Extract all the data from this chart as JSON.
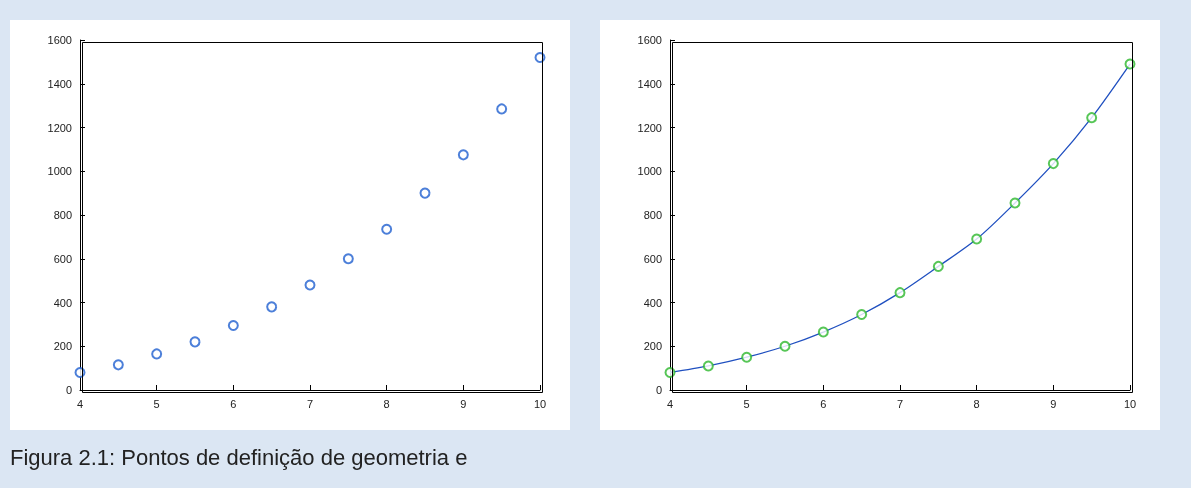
{
  "chart_data": [
    {
      "type": "scatter",
      "x": [
        4,
        4.5,
        5,
        5.5,
        6,
        6.5,
        7,
        7.5,
        8,
        8.5,
        9,
        9.5,
        10
      ],
      "series": [
        {
          "color": "#1f5fd0",
          "marker": "circle",
          "values": [
            80,
            115,
            165,
            220,
            295,
            380,
            480,
            600,
            735,
            900,
            1075,
            1285,
            1520
          ]
        }
      ],
      "xlim": [
        4,
        10
      ],
      "xticks": [
        4,
        5,
        6,
        7,
        8,
        9,
        10
      ],
      "ylim": [
        0,
        1600
      ],
      "yticks": [
        0,
        200,
        400,
        600,
        800,
        1000,
        1200,
        1400,
        1600
      ],
      "grid": false,
      "annotations": [
        "Figura 2.1: Pontos de definição de geometria e"
      ]
    },
    {
      "type": "line",
      "x": [
        4,
        4.5,
        5,
        5.5,
        6,
        6.5,
        7,
        7.5,
        8,
        8.5,
        9,
        9.5,
        10
      ],
      "series": [
        {
          "color": "#2050c0",
          "marker": "none",
          "line_style": "solid",
          "values": [
            80,
            110,
            150,
            200,
            265,
            345,
            445,
            565,
            690,
            855,
            1035,
            1245,
            1490
          ]
        },
        {
          "type": "scatter",
          "color": "#2db82d",
          "marker": "circle",
          "values": [
            80,
            110,
            150,
            200,
            265,
            345,
            445,
            565,
            690,
            855,
            1035,
            1245,
            1490
          ]
        }
      ],
      "xlim": [
        4,
        10
      ],
      "xticks": [
        4,
        5,
        6,
        7,
        8,
        9,
        10
      ],
      "ylim": [
        0,
        1600
      ],
      "yticks": [
        0,
        200,
        400,
        600,
        800,
        1000,
        1200,
        1400,
        1600
      ],
      "grid": false
    }
  ]
}
